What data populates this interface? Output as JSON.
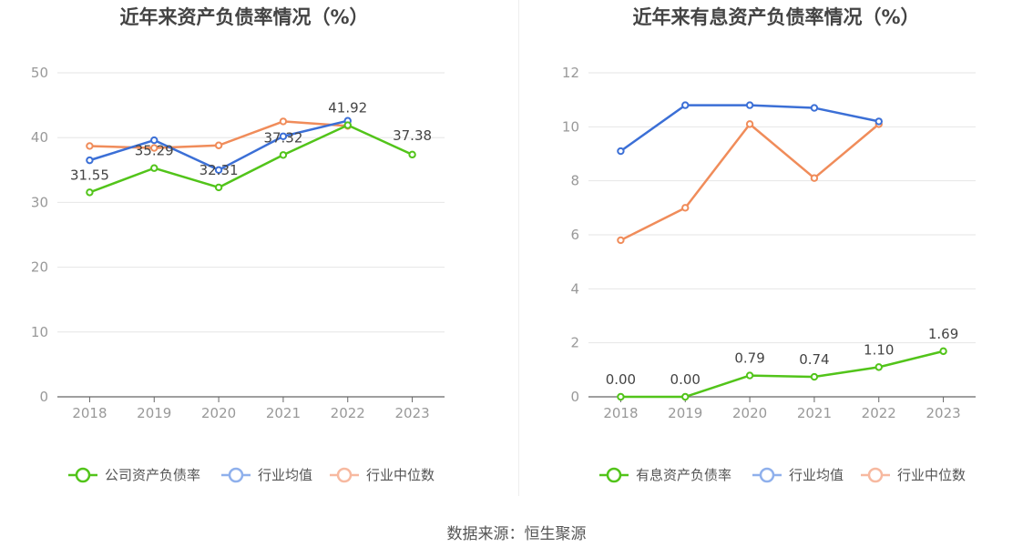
{
  "source_text": "数据来源：恒生聚源",
  "colors": {
    "green": "#52c41a",
    "blue": "#3b6fd6",
    "orange": "#f08c5a",
    "legend_blue": "#8fb0ec",
    "legend_orange": "#f7b9a0",
    "grid": "#e6e6e6",
    "axis": "#666666",
    "tick_text": "#999999",
    "title": "#444444",
    "label": "#444444"
  },
  "chart_data": [
    {
      "type": "line",
      "title": "近年来资产负债率情况（%）",
      "categories": [
        "2018",
        "2019",
        "2020",
        "2021",
        "2022",
        "2023"
      ],
      "ylim": [
        0,
        50
      ],
      "yticks": [
        0,
        10,
        20,
        30,
        40,
        50
      ],
      "grid": true,
      "legend_position": "bottom",
      "series": [
        {
          "name": "公司资产负债率",
          "color": "green",
          "legend_color": "green",
          "values": [
            31.55,
            35.29,
            32.31,
            37.32,
            41.92,
            37.38
          ],
          "show_labels": true,
          "labels": [
            "31.55",
            "35.29",
            "32.31",
            "37.32",
            "41.92",
            "37.38"
          ]
        },
        {
          "name": "行业均值",
          "color": "blue",
          "legend_color": "legend_blue",
          "values": [
            36.5,
            39.6,
            35.0,
            40.2,
            42.6,
            null
          ],
          "show_labels": false
        },
        {
          "name": "行业中位数",
          "color": "orange",
          "legend_color": "legend_orange",
          "values": [
            38.7,
            38.4,
            38.8,
            42.5,
            41.8,
            null
          ],
          "show_labels": false
        }
      ]
    },
    {
      "type": "line",
      "title": "近年来有息资产负债率情况（%）",
      "categories": [
        "2018",
        "2019",
        "2020",
        "2021",
        "2022",
        "2023"
      ],
      "ylim": [
        0,
        12
      ],
      "yticks": [
        0,
        2,
        4,
        6,
        8,
        10,
        12
      ],
      "grid": true,
      "legend_position": "bottom",
      "series": [
        {
          "name": "有息资产负债率",
          "color": "green",
          "legend_color": "green",
          "values": [
            0.0,
            0.0,
            0.79,
            0.74,
            1.1,
            1.69
          ],
          "show_labels": true,
          "labels": [
            "0.00",
            "0.00",
            "0.79",
            "0.74",
            "1.10",
            "1.69"
          ]
        },
        {
          "name": "行业均值",
          "color": "blue",
          "legend_color": "legend_blue",
          "values": [
            9.1,
            10.8,
            10.8,
            10.7,
            10.2,
            null
          ],
          "show_labels": false
        },
        {
          "name": "行业中位数",
          "color": "orange",
          "legend_color": "legend_orange",
          "values": [
            5.8,
            7.0,
            10.1,
            8.1,
            10.1,
            null
          ],
          "show_labels": false
        }
      ]
    }
  ]
}
